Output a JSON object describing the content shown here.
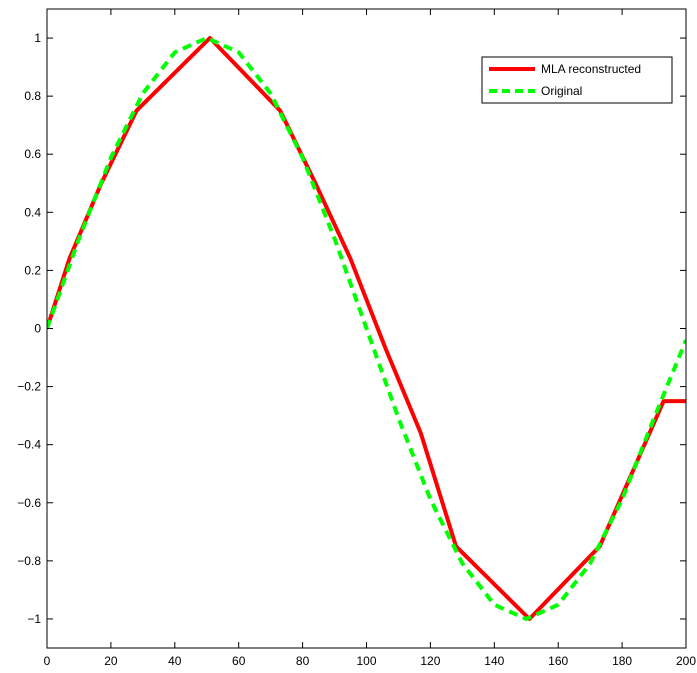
{
  "chart_data": {
    "type": "line",
    "xlim": [
      0,
      200
    ],
    "ylim": [
      -1.1,
      1.1
    ],
    "xticks": [
      0,
      20,
      40,
      60,
      80,
      100,
      120,
      140,
      160,
      180,
      200
    ],
    "yticks": [
      -1,
      -0.8,
      -0.6,
      -0.4,
      -0.2,
      0,
      0.2,
      0.4,
      0.6,
      0.8,
      1
    ],
    "ytick_labels": [
      "−1",
      "−0.8",
      "−0.6",
      "−0.4",
      "−0.2",
      "0",
      "0.2",
      "0.4",
      "0.6",
      "0.8",
      "1"
    ],
    "grid": false,
    "legend_position": "top-right",
    "series": [
      {
        "name": "MLA reconstructed",
        "color": "#ff0000",
        "style": "solid",
        "x": [
          0,
          7,
          17,
          28,
          51,
          73,
          84,
          95,
          106,
          117,
          128,
          151,
          173,
          183,
          193,
          200
        ],
        "y": [
          0,
          0.24,
          0.5,
          0.75,
          1.0,
          0.75,
          0.5,
          0.24,
          -0.07,
          -0.36,
          -0.75,
          -1.0,
          -0.75,
          -0.5,
          -0.25,
          -0.25
        ]
      },
      {
        "name": "Original",
        "color": "#00ff00",
        "style": "dashed",
        "x": [
          0,
          10,
          20,
          30,
          40,
          50,
          60,
          70,
          80,
          90,
          100,
          110,
          120,
          130,
          140,
          150,
          160,
          170,
          180,
          190,
          200
        ],
        "y": [
          0,
          0.309,
          0.588,
          0.809,
          0.951,
          1.0,
          0.951,
          0.809,
          0.588,
          0.309,
          0,
          -0.309,
          -0.588,
          -0.809,
          -0.951,
          -1.0,
          -0.951,
          -0.809,
          -0.588,
          -0.309,
          -0.04
        ]
      }
    ]
  }
}
